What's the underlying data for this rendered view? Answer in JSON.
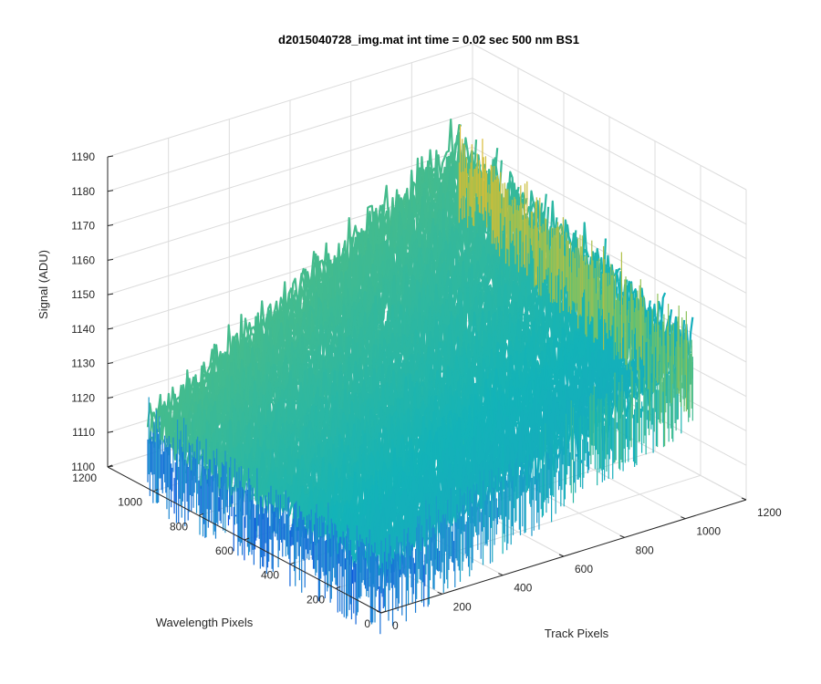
{
  "chart_data": {
    "type": "surface",
    "title": "d2015040728_img.mat int time = 0.02 sec  500 nm BS1",
    "xlabel": "Track Pixels",
    "ylabel": "Wavelength Pixels",
    "zlabel": "Signal (ADU)",
    "xlim": [
      0,
      1200
    ],
    "ylim": [
      0,
      1200
    ],
    "zlim": [
      1100,
      1190
    ],
    "x_ticks": [
      "0",
      "200",
      "400",
      "600",
      "800",
      "1000",
      "1200"
    ],
    "y_ticks": [
      "0",
      "200",
      "400",
      "600",
      "800",
      "1000",
      "1200"
    ],
    "z_ticks": [
      "1100",
      "1110",
      "1120",
      "1130",
      "1140",
      "1150",
      "1160",
      "1170",
      "1180",
      "1190"
    ],
    "grid": true,
    "colormap": [
      "#0d4fe0",
      "#1f8fd0",
      "#13b3b8",
      "#6dc26a",
      "#c8be3a",
      "#f2b634"
    ],
    "surface": {
      "x_range": [
        0,
        1024
      ],
      "y_range": [
        0,
        1024
      ],
      "corner_means": {
        "x0_y0": 1115,
        "x0_y1024": 1117,
        "x1024_y0": 1148,
        "x1024_y1024": 1170
      },
      "noise_peak_to_peak": 25
    }
  }
}
